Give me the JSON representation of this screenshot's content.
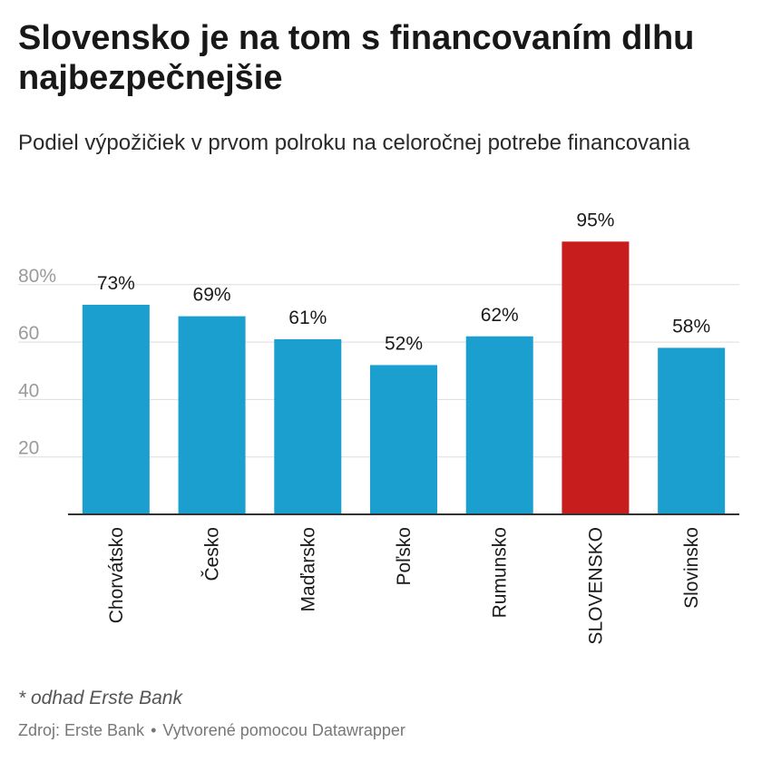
{
  "header": {
    "title": "Slovensko je na tom s financovaním dlhu najbezpečnejšie",
    "subtitle": "Podiel výpožičiek v prvom polroku na celoročnej potrebe financovania"
  },
  "note": "* odhad Erste Bank",
  "footer": {
    "source": "Zdroj: Erste Bank",
    "separator": "•",
    "credit": "Vytvorené pomocou Datawrapper"
  },
  "colors": {
    "bar_default": "#1a9fce",
    "bar_highlight": "#c81d1d",
    "grid": "#dddddd",
    "axis_tick_label": "#9a9a9a",
    "baseline": "#333333"
  },
  "chart_data": {
    "type": "bar",
    "title": "Slovensko je na tom s financovaním dlhu najbezpečnejšie",
    "subtitle": "Podiel výpožičiek v prvom polroku na celoročnej potrebe financovania",
    "xlabel": "",
    "ylabel": "",
    "categories": [
      "Chorvátsko",
      "Česko",
      "Maďarsko",
      "Poľsko",
      "Rumunsko",
      "SLOVENSKO",
      "Slovinsko"
    ],
    "values": [
      73,
      69,
      61,
      52,
      62,
      95,
      58
    ],
    "value_labels": [
      "73%",
      "69%",
      "61%",
      "52%",
      "62%",
      "95%",
      "58%"
    ],
    "highlight": [
      "SLOVENSKO"
    ],
    "ylim": [
      0,
      100
    ],
    "y_ticks": [
      20,
      40,
      60,
      80
    ],
    "y_tick_labels": [
      "20",
      "40",
      "60",
      "80%"
    ],
    "grid": true,
    "legend": "none"
  }
}
